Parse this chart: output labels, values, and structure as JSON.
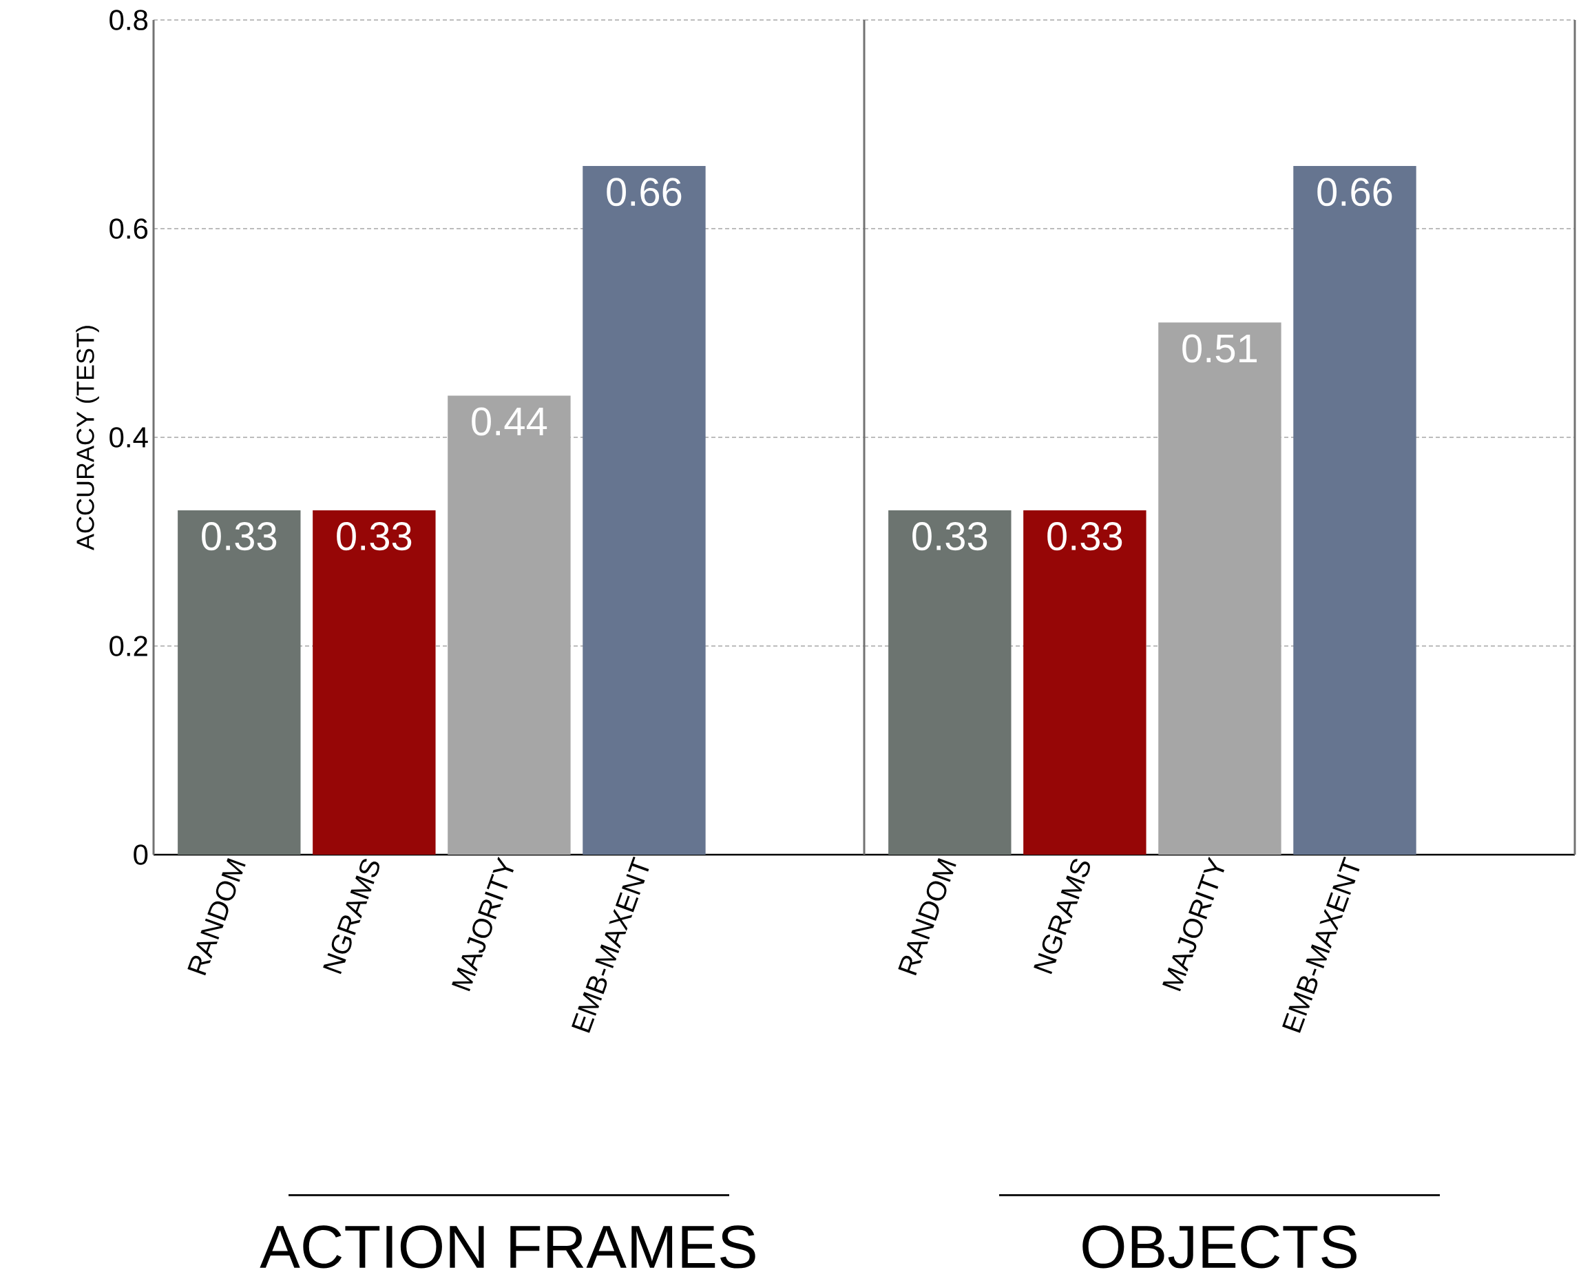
{
  "chart_data": [
    {
      "type": "bar",
      "categories": [
        "RANDOM",
        "NGRAMS",
        "MAJORITY",
        "EMB-MAXENT"
      ],
      "values": [
        0.33,
        0.33,
        0.44,
        0.66
      ],
      "colors": [
        "#6c7470",
        "#960606",
        "#a6a6a6",
        "#667590"
      ],
      "data_labels": true,
      "xlabel": "ACTION FRAMES",
      "ylabel": "ACCURACY (TEST)",
      "ylim": [
        0,
        0.8
      ],
      "yticks": [
        0,
        0.2,
        0.4,
        0.6,
        0.8
      ],
      "grid": "y"
    },
    {
      "type": "bar",
      "categories": [
        "RANDOM",
        "NGRAMS",
        "MAJORITY",
        "EMB-MAXENT"
      ],
      "values": [
        0.33,
        0.33,
        0.51,
        0.66
      ],
      "colors": [
        "#6c7470",
        "#960606",
        "#a6a6a6",
        "#667590"
      ],
      "data_labels": true,
      "xlabel": "OBJECTS",
      "ylim": [
        0,
        0.8
      ],
      "yticks": [
        0,
        0.2,
        0.4,
        0.6,
        0.8
      ],
      "grid": "y",
      "tick_labels": "x"
    }
  ]
}
